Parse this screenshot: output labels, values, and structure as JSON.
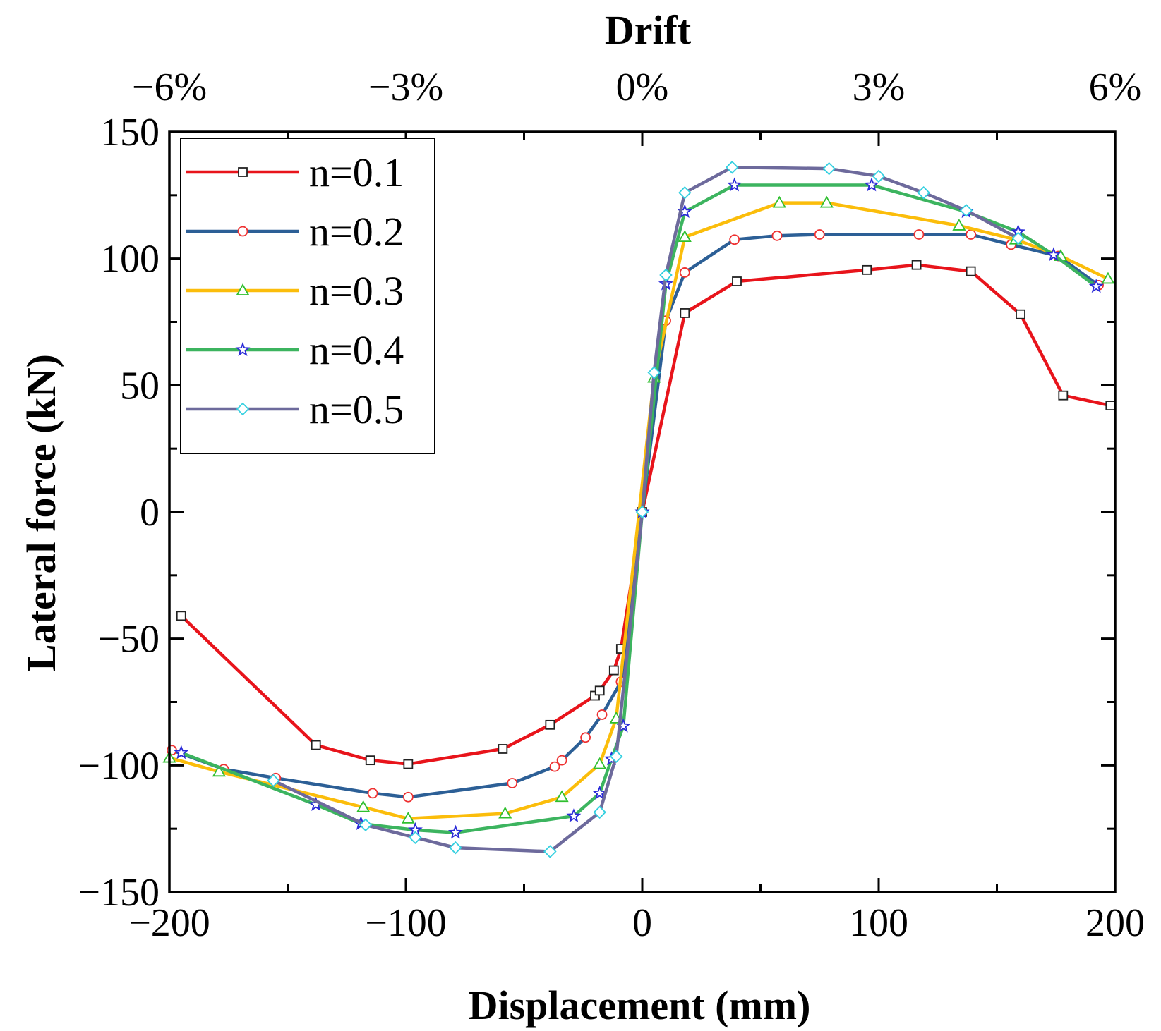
{
  "chart_data": {
    "type": "line",
    "title": "",
    "xlabel": "Displacement (mm)",
    "ylabel": "Lateral force (kN)",
    "top_axis_title": "Drift",
    "xlim": [
      -200,
      200
    ],
    "ylim": [
      -150,
      150
    ],
    "x_ticks": [
      -200,
      -100,
      0,
      100,
      200
    ],
    "x_tick_labels": [
      "−200",
      "−100",
      "0",
      "100",
      "200"
    ],
    "y_ticks": [
      -150,
      -100,
      -50,
      0,
      50,
      100,
      150
    ],
    "y_tick_labels": [
      "−150",
      "−100",
      "−50",
      "0",
      "50",
      "100",
      "150"
    ],
    "top_ticks": [
      -200,
      -100,
      0,
      100,
      200
    ],
    "top_tick_labels": [
      "−6%",
      "−3%",
      "0%",
      "3%",
      "6%"
    ],
    "grid": false,
    "legend_position": "top-left",
    "series": [
      {
        "name": "n=0.1",
        "color": "#e8141b",
        "marker": "square",
        "x": [
          -195,
          -138,
          -115,
          -99,
          -59,
          -39,
          -20,
          -18,
          -12,
          -9,
          0,
          18,
          40,
          95,
          116,
          139,
          160,
          178,
          198
        ],
        "y": [
          -41,
          -92,
          -98,
          -99.5,
          -93.5,
          -84,
          -72.5,
          -70.5,
          -62.5,
          -54,
          0,
          78.5,
          91,
          95.5,
          97.5,
          95,
          78,
          46,
          42
        ]
      },
      {
        "name": "n=0.2",
        "color": "#2c5f96",
        "marker": "circle",
        "x": [
          -199,
          -177,
          -155,
          -114,
          -99,
          -55,
          -37,
          -34,
          -24,
          -17,
          -9,
          0,
          10,
          18,
          39,
          57,
          75,
          117,
          139,
          156,
          176,
          193
        ],
        "y": [
          -94,
          -101.5,
          -105,
          -111,
          -112.5,
          -107,
          -100.5,
          -98,
          -89,
          -80,
          -67,
          0,
          75.5,
          94.5,
          107.5,
          109,
          109.5,
          109.5,
          109.5,
          105.5,
          101,
          89.5
        ]
      },
      {
        "name": "n=0.3",
        "color": "#fbbd0b",
        "marker": "triangle",
        "x": [
          -200,
          -179,
          -118,
          -99,
          -58,
          -34,
          -18,
          -11,
          5,
          18,
          58,
          78,
          134,
          158,
          177,
          197
        ],
        "y": [
          -97,
          -102.5,
          -116.5,
          -121,
          -119,
          -112.5,
          -99.5,
          -81.5,
          53,
          108.5,
          122,
          122,
          113,
          107.5,
          101,
          92
        ]
      },
      {
        "name": "n=0.4",
        "color": "#3cb45f",
        "marker": "star",
        "x": [
          -195,
          -138,
          -119,
          -96,
          -79,
          -29,
          -18,
          -13,
          -8,
          0,
          10,
          18,
          39,
          97,
          137,
          159,
          174,
          192
        ],
        "y": [
          -95,
          -115.5,
          -123,
          -125.5,
          -126.5,
          -120,
          -111,
          -97.5,
          -84.5,
          0,
          90,
          118.5,
          129,
          129,
          118.5,
          110.5,
          101.5,
          89
        ]
      },
      {
        "name": "n=0.5",
        "color": "#6d6a9c",
        "marker": "diamond",
        "x": [
          -156,
          -117,
          -96,
          -79,
          -39,
          -18,
          -11,
          0,
          5,
          10,
          18,
          38,
          79,
          100,
          119,
          137,
          159
        ],
        "y": [
          -106,
          -123.5,
          -128.5,
          -132.5,
          -134,
          -118.5,
          -96.5,
          0,
          55,
          93.5,
          126,
          136,
          135.5,
          132.5,
          126,
          119,
          108
        ]
      }
    ]
  }
}
